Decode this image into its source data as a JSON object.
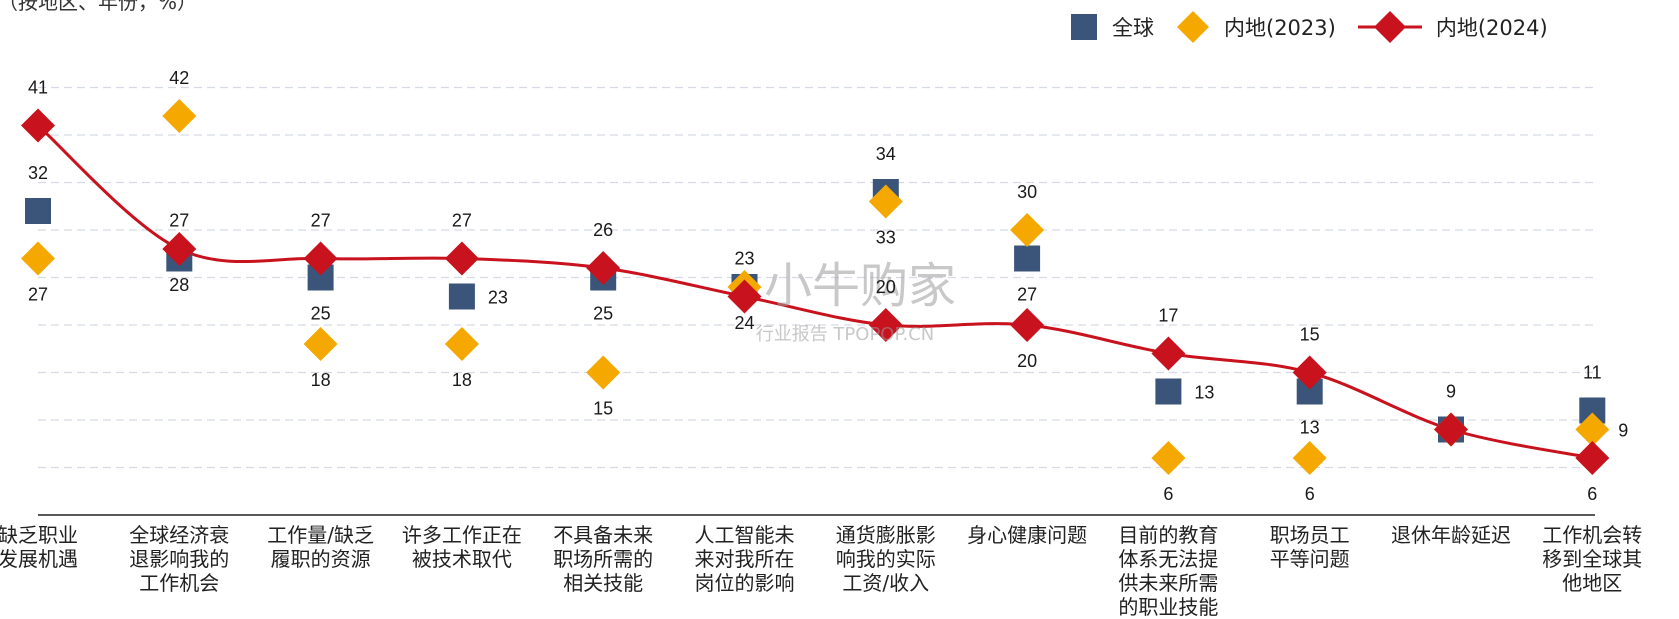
{
  "subtitle": "（按地区、年份，%）",
  "watermark": {
    "main": "小牛购家",
    "sub": "行业报告 TPOPOP.CN"
  },
  "colors": {
    "global": "#3b5479",
    "mainland2023": "#f5a800",
    "mainland2024": "#c8121d",
    "grid": "#d6dae6",
    "axis": "#222222"
  },
  "legend": [
    {
      "label": "全球",
      "marker": "square"
    },
    {
      "label": "内地(2023)",
      "marker": "diamond"
    },
    {
      "label": "内地(2024)",
      "marker": "line-diamond"
    }
  ],
  "chart_data": {
    "type": "line",
    "categories": [
      "缺乏职业\n发展机遇",
      "全球经济衰\n退影响我的\n工作机会",
      "工作量/缺乏\n履职的资源",
      "许多工作正在\n被技术取代",
      "不具备未来\n职场所需的\n相关技能",
      "人工智能未\n来对我所在\n岗位的影响",
      "通货膨胀影\n响我的实际\n工资/收入",
      "身心健康问题",
      "目前的教育\n体系无法提\n供未来所需\n的职业技能",
      "职场员工\n平等问题",
      "退休年龄延迟",
      "工作机会转\n移到全球其\n他地区"
    ],
    "series": [
      {
        "name": "全球",
        "values": [
          32,
          27,
          25,
          23,
          25,
          24,
          34,
          27,
          13,
          13,
          9,
          11
        ]
      },
      {
        "name": "内地(2023)",
        "values": [
          27,
          42,
          18,
          18,
          15,
          24,
          33,
          30,
          6,
          6,
          9,
          9
        ]
      },
      {
        "name": "内地(2024)",
        "values": [
          41,
          28,
          27,
          27,
          26,
          23,
          20,
          20,
          17,
          15,
          9,
          6
        ]
      }
    ],
    "ylim": [
      0,
      45
    ],
    "grid": true,
    "gridlines": [
      5,
      10,
      15,
      20,
      25,
      30,
      35,
      40,
      45
    ],
    "legend_position": "top-right",
    "labels": [
      {
        "text": "41",
        "series": 2,
        "index": 0,
        "pos": "above"
      },
      {
        "text": "32",
        "series": 0,
        "index": 0,
        "pos": "above"
      },
      {
        "text": "27",
        "series": 1,
        "index": 0,
        "pos": "below"
      },
      {
        "text": "42",
        "series": 1,
        "index": 1,
        "pos": "above"
      },
      {
        "text": "27",
        "series": 0,
        "index": 1,
        "pos": "above"
      },
      {
        "text": "28",
        "series": 2,
        "index": 1,
        "pos": "below"
      },
      {
        "text": "27",
        "series": 2,
        "index": 2,
        "pos": "above"
      },
      {
        "text": "25",
        "series": 0,
        "index": 2,
        "pos": "below"
      },
      {
        "text": "18",
        "series": 1,
        "index": 2,
        "pos": "below"
      },
      {
        "text": "27",
        "series": 2,
        "index": 3,
        "pos": "above"
      },
      {
        "text": "23",
        "series": 0,
        "index": 3,
        "pos": "right"
      },
      {
        "text": "18",
        "series": 1,
        "index": 3,
        "pos": "below"
      },
      {
        "text": "26",
        "series": 2,
        "index": 4,
        "pos": "above"
      },
      {
        "text": "25",
        "series": 0,
        "index": 4,
        "pos": "below"
      },
      {
        "text": "15",
        "series": 1,
        "index": 4,
        "pos": "below"
      },
      {
        "text": "23",
        "series": 2,
        "index": 5,
        "pos": "above"
      },
      {
        "text": "24",
        "series": 0,
        "index": 5,
        "pos": "below"
      },
      {
        "text": "34",
        "series": 0,
        "index": 6,
        "pos": "above"
      },
      {
        "text": "33",
        "series": 1,
        "index": 6,
        "pos": "below"
      },
      {
        "text": "20",
        "series": 2,
        "index": 6,
        "pos": "above"
      },
      {
        "text": "30",
        "series": 1,
        "index": 7,
        "pos": "above"
      },
      {
        "text": "27",
        "series": 0,
        "index": 7,
        "pos": "below"
      },
      {
        "text": "20",
        "series": 2,
        "index": 7,
        "pos": "below"
      },
      {
        "text": "17",
        "series": 2,
        "index": 8,
        "pos": "above"
      },
      {
        "text": "13",
        "series": 0,
        "index": 8,
        "pos": "right"
      },
      {
        "text": "6",
        "series": 1,
        "index": 8,
        "pos": "below"
      },
      {
        "text": "15",
        "series": 2,
        "index": 9,
        "pos": "above"
      },
      {
        "text": "13",
        "series": 0,
        "index": 9,
        "pos": "below"
      },
      {
        "text": "6",
        "series": 1,
        "index": 9,
        "pos": "below"
      },
      {
        "text": "9",
        "series": 2,
        "index": 10,
        "pos": "above"
      },
      {
        "text": "11",
        "series": 0,
        "index": 11,
        "pos": "above"
      },
      {
        "text": "9",
        "series": 1,
        "index": 11,
        "pos": "right"
      },
      {
        "text": "6",
        "series": 2,
        "index": 11,
        "pos": "below"
      }
    ]
  }
}
